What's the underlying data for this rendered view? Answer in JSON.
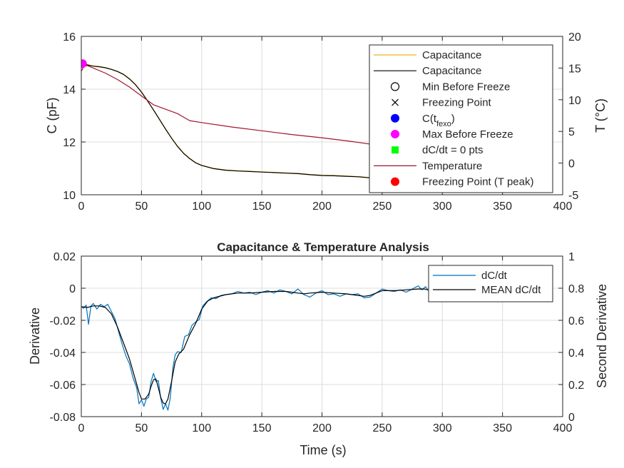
{
  "chart_data": [
    {
      "type": "line",
      "title": "",
      "xlabel": "",
      "ylabel_left": "C (pF)",
      "ylabel_right": "T (°C)",
      "xlim": [
        0,
        400
      ],
      "ylim_left": [
        10,
        16
      ],
      "ylim_right": [
        -5,
        20
      ],
      "xticks": [
        "0",
        "50",
        "100",
        "150",
        "200",
        "250",
        "300",
        "350",
        "400"
      ],
      "yticks_left": [
        "10",
        "12",
        "14",
        "16"
      ],
      "yticks_right": [
        "-5",
        "0",
        "5",
        "10",
        "15",
        "20"
      ],
      "grid": true,
      "legend_position": "top-right",
      "legend_entries": [
        {
          "label": "Capacitance",
          "kind": "line",
          "color": "#EDB120"
        },
        {
          "label": "Capacitance",
          "kind": "line",
          "color": "#000000"
        },
        {
          "label": "Min Before Freeze",
          "kind": "open-circle",
          "color": "#000000"
        },
        {
          "label": "Freezing Point",
          "kind": "cross",
          "color": "#000000"
        },
        {
          "label": "C(t",
          "sub": "fexo",
          "after": ")",
          "kind": "dot",
          "color": "#0000FF"
        },
        {
          "label": "Max Before Freeze",
          "kind": "dot",
          "color": "#FF00FF"
        },
        {
          "label": "dC/dt = 0 pts",
          "kind": "square",
          "color": "#00FF00"
        },
        {
          "label": "Temperature",
          "kind": "line",
          "color": "#A2142F"
        },
        {
          "label": "Freezing Point (T peak)",
          "kind": "dot",
          "color": "#FF0000"
        }
      ],
      "series": [
        {
          "name": "Capacitance",
          "axis": "left",
          "color": "#EDB120",
          "x": [
            0,
            2,
            5,
            10,
            15,
            20,
            25,
            30,
            35,
            40,
            45,
            50,
            55,
            60,
            65,
            70,
            75,
            80,
            85,
            90,
            95,
            100,
            110,
            120,
            130,
            140,
            150,
            160,
            170,
            180,
            190,
            200,
            210,
            220,
            230,
            240,
            250,
            260,
            270,
            280,
            285
          ],
          "y": [
            14.93,
            14.96,
            14.93,
            14.88,
            14.86,
            14.82,
            14.76,
            14.68,
            14.57,
            14.4,
            14.18,
            13.9,
            13.57,
            13.22,
            12.86,
            12.5,
            12.15,
            11.84,
            11.58,
            11.38,
            11.22,
            11.12,
            11.0,
            10.94,
            10.91,
            10.89,
            10.87,
            10.85,
            10.83,
            10.81,
            10.77,
            10.74,
            10.73,
            10.71,
            10.69,
            10.65,
            10.62,
            10.6,
            10.58,
            10.56,
            10.55
          ]
        },
        {
          "name": "Capacitance",
          "axis": "left",
          "color": "#000000",
          "x": [
            0,
            2,
            5,
            10,
            15,
            20,
            25,
            30,
            35,
            40,
            45,
            50,
            55,
            60,
            65,
            70,
            75,
            80,
            85,
            90,
            95,
            100,
            110,
            120,
            130,
            140,
            150,
            160,
            170,
            180,
            190,
            200,
            210,
            220,
            230,
            240,
            250,
            260,
            270,
            280,
            285
          ],
          "y": [
            14.92,
            14.95,
            14.92,
            14.87,
            14.85,
            14.81,
            14.75,
            14.67,
            14.56,
            14.39,
            14.17,
            13.89,
            13.56,
            13.21,
            12.85,
            12.49,
            12.14,
            11.83,
            11.57,
            11.37,
            11.21,
            11.11,
            10.99,
            10.93,
            10.9,
            10.88,
            10.86,
            10.84,
            10.82,
            10.8,
            10.76,
            10.73,
            10.72,
            10.7,
            10.68,
            10.64,
            10.61,
            10.59,
            10.57,
            10.55,
            10.54
          ]
        },
        {
          "name": "Temperature",
          "axis": "right",
          "color": "#A2142F",
          "x": [
            0,
            2,
            5,
            10,
            20,
            30,
            40,
            50,
            60,
            70,
            80,
            90,
            100,
            125,
            150,
            175,
            200,
            225,
            240,
            250,
            260,
            275,
            285
          ],
          "y": [
            14.5,
            15.2,
            15.4,
            15.0,
            14.2,
            13.2,
            12.0,
            10.6,
            9.2,
            8.5,
            7.8,
            6.7,
            6.4,
            5.7,
            5.1,
            4.5,
            4.0,
            3.4,
            3.0,
            2.8,
            2.6,
            2.3,
            2.1
          ]
        }
      ],
      "markers": [
        {
          "label": "Max Before Freeze",
          "x": 1,
          "y": 14.97,
          "color": "#FF00FF"
        }
      ]
    },
    {
      "type": "line",
      "title": "Capacitance & Temperature Analysis",
      "xlabel": "Time (s)",
      "ylabel_left": "Derivative",
      "ylabel_right": "Second Derivative",
      "xlim": [
        0,
        400
      ],
      "ylim_left": [
        -0.08,
        0.02
      ],
      "ylim_right": [
        0,
        1
      ],
      "xticks": [
        "0",
        "50",
        "100",
        "150",
        "200",
        "250",
        "300",
        "350",
        "400"
      ],
      "yticks_left": [
        "-0.08",
        "-0.06",
        "-0.04",
        "-0.02",
        "0",
        "0.02"
      ],
      "yticks_right": [
        "0",
        "0.2",
        "0.4",
        "0.6",
        "0.8",
        "1"
      ],
      "grid": true,
      "legend_position": "top-right",
      "legend_entries": [
        {
          "label": "dC/dt",
          "kind": "line",
          "color": "#0072BD"
        },
        {
          "label": "MEAN dC/dt",
          "kind": "line",
          "color": "#000000"
        }
      ],
      "series": [
        {
          "name": "dC/dt",
          "axis": "left",
          "color": "#0072BD",
          "x": [
            0,
            2,
            4,
            6,
            8,
            10,
            13,
            16,
            19,
            22,
            25,
            28,
            31,
            34,
            37,
            40,
            43,
            46,
            48,
            50,
            52,
            54,
            56,
            58,
            60,
            62,
            64,
            66,
            68,
            70,
            72,
            74,
            76,
            78,
            80,
            83,
            86,
            89,
            92,
            95,
            98,
            101,
            104,
            108,
            112,
            116,
            120,
            125,
            130,
            135,
            140,
            145,
            150,
            155,
            160,
            165,
            170,
            175,
            180,
            185,
            190,
            195,
            200,
            205,
            210,
            215,
            220,
            225,
            230,
            235,
            240,
            245,
            250,
            255,
            260,
            265,
            270,
            275,
            280,
            283,
            286,
            289
          ],
          "y": [
            -0.0115,
            -0.0125,
            -0.0105,
            -0.0225,
            -0.011,
            -0.0095,
            -0.013,
            -0.01,
            -0.0115,
            -0.01,
            -0.0145,
            -0.019,
            -0.027,
            -0.035,
            -0.042,
            -0.047,
            -0.056,
            -0.062,
            -0.072,
            -0.0695,
            -0.0735,
            -0.069,
            -0.068,
            -0.058,
            -0.053,
            -0.058,
            -0.0575,
            -0.0685,
            -0.0755,
            -0.072,
            -0.076,
            -0.068,
            -0.05,
            -0.0415,
            -0.0395,
            -0.04,
            -0.03,
            -0.029,
            -0.023,
            -0.021,
            -0.0195,
            -0.011,
            -0.0085,
            -0.006,
            -0.0065,
            -0.0045,
            -0.004,
            -0.0035,
            -0.002,
            -0.003,
            -0.0025,
            -0.004,
            -0.0025,
            -0.0015,
            -0.003,
            -0.001,
            -0.002,
            -0.0035,
            -0.0005,
            -0.004,
            -0.0055,
            -0.003,
            -0.0015,
            -0.004,
            -0.0035,
            -0.005,
            -0.0035,
            -0.004,
            -0.0035,
            -0.006,
            -0.0055,
            -0.003,
            -0.0005,
            -0.0015,
            -0.002,
            -0.001,
            -0.0025,
            -0.0005,
            0.0015,
            -0.001,
            0.001,
            -0.002
          ]
        },
        {
          "name": "MEAN dC/dt",
          "axis": "left",
          "color": "#000000",
          "x": [
            0,
            5,
            10,
            15,
            20,
            25,
            30,
            35,
            40,
            45,
            48,
            50,
            53,
            56,
            58,
            60,
            62,
            64,
            66,
            68,
            70,
            72,
            75,
            78,
            81,
            85,
            90,
            95,
            100,
            105,
            110,
            120,
            130,
            140,
            150,
            160,
            170,
            175,
            180,
            185,
            190,
            200,
            210,
            220,
            230,
            235,
            240,
            245,
            250,
            260,
            270,
            280,
            285,
            288
          ],
          "y": [
            -0.0115,
            -0.012,
            -0.011,
            -0.011,
            -0.012,
            -0.016,
            -0.024,
            -0.034,
            -0.044,
            -0.057,
            -0.065,
            -0.069,
            -0.069,
            -0.066,
            -0.061,
            -0.057,
            -0.0565,
            -0.062,
            -0.068,
            -0.0715,
            -0.072,
            -0.069,
            -0.058,
            -0.046,
            -0.041,
            -0.038,
            -0.029,
            -0.022,
            -0.013,
            -0.008,
            -0.006,
            -0.004,
            -0.003,
            -0.003,
            -0.0025,
            -0.002,
            -0.002,
            -0.0025,
            -0.003,
            -0.0035,
            -0.003,
            -0.0025,
            -0.003,
            -0.0035,
            -0.0045,
            -0.005,
            -0.0045,
            -0.003,
            -0.0015,
            -0.0015,
            -0.001,
            -0.0005,
            -0.0005,
            -0.001
          ]
        }
      ]
    }
  ]
}
